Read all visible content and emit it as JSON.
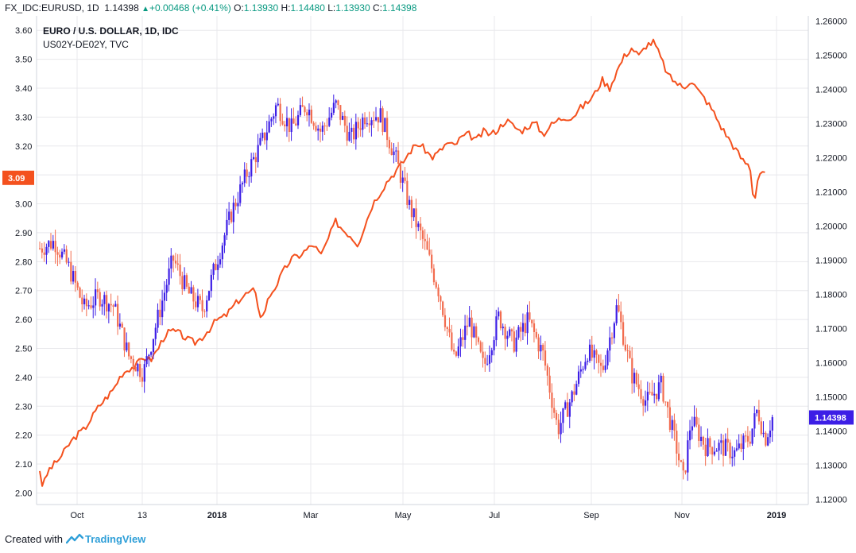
{
  "header": {
    "symbol": "FX_IDC:EURUSD, 1D",
    "last": "1.14398",
    "change": "+0.00468 (+0.41%)",
    "o_label": "O:",
    "o_value": "1.13930",
    "h_label": "H:",
    "h_value": "1.14480",
    "l_label": "L:",
    "l_value": "1.13930",
    "c_label": "C:",
    "c_value": "1.14398"
  },
  "legend": {
    "line1": "EURO / U.S. DOLLAR, 1D, IDC",
    "line2": "US02Y-DE02Y, TVC"
  },
  "footer": {
    "created_with": "Created with",
    "brand": "TradingView"
  },
  "colors": {
    "spread_line": "#f4511e",
    "candle_up": "#3c1ee6",
    "candle_down": "#f26c4f",
    "grid": "#e8e8ec",
    "last_price_tag": "#3c1ee6",
    "spread_tag": "#f4511e"
  },
  "chart_data": {
    "type": "line",
    "x_labels": [
      "Oct",
      "13",
      "2018",
      "Mar",
      "May",
      "Jul",
      "Sep",
      "Nov",
      "2019"
    ],
    "x_labels_bold": [
      "2018",
      "2019"
    ],
    "left_axis": {
      "series": "US02Y-DE02Y",
      "range": [
        1.96,
        3.65
      ],
      "ticks": [
        "3.60",
        "3.50",
        "3.40",
        "3.30",
        "3.20",
        "3.10",
        "3.00",
        "2.90",
        "2.80",
        "2.70",
        "2.60",
        "2.50",
        "2.40",
        "2.30",
        "2.20",
        "2.10",
        "2.00"
      ],
      "last_value": "3.09"
    },
    "right_axis": {
      "series": "EURUSD",
      "range": [
        1.1185,
        1.2615
      ],
      "ticks": [
        "1.26000",
        "1.25000",
        "1.24000",
        "1.23000",
        "1.22000",
        "1.21000",
        "1.20000",
        "1.19000",
        "1.18000",
        "1.17000",
        "1.16000",
        "1.15000",
        "1.14000",
        "1.13000",
        "1.12000"
      ],
      "last_value": "1.14398"
    },
    "grid": true,
    "series": [
      {
        "name": "US02Y-DE02Y",
        "style": "line",
        "axis": "left",
        "points": [
          [
            0,
            2.08
          ],
          [
            0.004,
            2.02
          ],
          [
            0.012,
            2.08
          ],
          [
            0.02,
            2.1
          ],
          [
            0.03,
            2.13
          ],
          [
            0.04,
            2.17
          ],
          [
            0.05,
            2.2
          ],
          [
            0.06,
            2.22
          ],
          [
            0.07,
            2.26
          ],
          [
            0.08,
            2.3
          ],
          [
            0.09,
            2.33
          ],
          [
            0.1,
            2.36
          ],
          [
            0.11,
            2.41
          ],
          [
            0.12,
            2.43
          ],
          [
            0.13,
            2.44
          ],
          [
            0.14,
            2.47
          ],
          [
            0.15,
            2.46
          ],
          [
            0.16,
            2.5
          ],
          [
            0.17,
            2.55
          ],
          [
            0.18,
            2.56
          ],
          [
            0.19,
            2.55
          ],
          [
            0.2,
            2.53
          ],
          [
            0.21,
            2.52
          ],
          [
            0.22,
            2.54
          ],
          [
            0.23,
            2.57
          ],
          [
            0.24,
            2.6
          ],
          [
            0.25,
            2.61
          ],
          [
            0.26,
            2.64
          ],
          [
            0.27,
            2.67
          ],
          [
            0.28,
            2.69
          ],
          [
            0.29,
            2.7
          ],
          [
            0.3,
            2.6
          ],
          [
            0.31,
            2.68
          ],
          [
            0.32,
            2.72
          ],
          [
            0.33,
            2.77
          ],
          [
            0.34,
            2.81
          ],
          [
            0.35,
            2.82
          ],
          [
            0.36,
            2.84
          ],
          [
            0.37,
            2.86
          ],
          [
            0.38,
            2.82
          ],
          [
            0.39,
            2.88
          ],
          [
            0.4,
            2.94
          ],
          [
            0.41,
            2.91
          ],
          [
            0.42,
            2.89
          ],
          [
            0.43,
            2.86
          ],
          [
            0.44,
            2.93
          ],
          [
            0.45,
            3.0
          ],
          [
            0.46,
            3.04
          ],
          [
            0.47,
            3.08
          ],
          [
            0.48,
            3.11
          ],
          [
            0.49,
            3.14
          ],
          [
            0.5,
            3.18
          ],
          [
            0.51,
            3.21
          ],
          [
            0.52,
            3.19
          ],
          [
            0.53,
            3.16
          ],
          [
            0.54,
            3.18
          ],
          [
            0.55,
            3.21
          ],
          [
            0.56,
            3.2
          ],
          [
            0.57,
            3.23
          ],
          [
            0.58,
            3.24
          ],
          [
            0.59,
            3.22
          ],
          [
            0.6,
            3.25
          ],
          [
            0.61,
            3.24
          ],
          [
            0.62,
            3.26
          ],
          [
            0.63,
            3.29
          ],
          [
            0.64,
            3.27
          ],
          [
            0.65,
            3.25
          ],
          [
            0.66,
            3.27
          ],
          [
            0.67,
            3.28
          ],
          [
            0.68,
            3.24
          ],
          [
            0.69,
            3.27
          ],
          [
            0.7,
            3.29
          ],
          [
            0.71,
            3.3
          ],
          [
            0.72,
            3.3
          ],
          [
            0.73,
            3.33
          ],
          [
            0.74,
            3.35
          ],
          [
            0.75,
            3.38
          ],
          [
            0.76,
            3.43
          ],
          [
            0.77,
            3.4
          ],
          [
            0.78,
            3.46
          ],
          [
            0.79,
            3.51
          ],
          [
            0.8,
            3.54
          ],
          [
            0.81,
            3.51
          ],
          [
            0.82,
            3.55
          ],
          [
            0.83,
            3.56
          ],
          [
            0.84,
            3.5
          ],
          [
            0.85,
            3.44
          ],
          [
            0.86,
            3.42
          ],
          [
            0.87,
            3.4
          ],
          [
            0.88,
            3.43
          ],
          [
            0.89,
            3.39
          ],
          [
            0.9,
            3.36
          ],
          [
            0.91,
            3.32
          ],
          [
            0.92,
            3.27
          ],
          [
            0.93,
            3.23
          ],
          [
            0.94,
            3.19
          ],
          [
            0.95,
            3.15
          ],
          [
            0.96,
            3.13
          ],
          [
            0.965,
            3.0
          ],
          [
            0.97,
            3.08
          ],
          [
            0.975,
            3.12
          ],
          [
            0.98,
            3.1
          ]
        ]
      },
      {
        "name": "EURUSD",
        "style": "candles",
        "axis": "right",
        "path": [
          [
            0,
            1.1935
          ],
          [
            0.02,
            1.1955
          ],
          [
            0.04,
            1.1875
          ],
          [
            0.06,
            1.176
          ],
          [
            0.08,
            1.1795
          ],
          [
            0.1,
            1.1765
          ],
          [
            0.12,
            1.162
          ],
          [
            0.14,
            1.157
          ],
          [
            0.16,
            1.1735
          ],
          [
            0.18,
            1.1905
          ],
          [
            0.2,
            1.1805
          ],
          [
            0.22,
            1.1755
          ],
          [
            0.24,
            1.1905
          ],
          [
            0.26,
            1.2045
          ],
          [
            0.28,
            1.2155
          ],
          [
            0.3,
            1.2245
          ],
          [
            0.32,
            1.2355
          ],
          [
            0.34,
            1.2285
          ],
          [
            0.36,
            1.2355
          ],
          [
            0.38,
            1.2275
          ],
          [
            0.4,
            1.2355
          ],
          [
            0.42,
            1.2255
          ],
          [
            0.44,
            1.2325
          ],
          [
            0.46,
            1.2325
          ],
          [
            0.48,
            1.2205
          ],
          [
            0.5,
            1.2055
          ],
          [
            0.52,
            1.1945
          ],
          [
            0.54,
            1.1805
          ],
          [
            0.56,
            1.1605
          ],
          [
            0.58,
            1.1725
          ],
          [
            0.6,
            1.1585
          ],
          [
            0.62,
            1.1735
          ],
          [
            0.64,
            1.1655
          ],
          [
            0.66,
            1.1725
          ],
          [
            0.68,
            1.1625
          ],
          [
            0.7,
            1.1405
          ],
          [
            0.72,
            1.1505
          ],
          [
            0.74,
            1.1635
          ],
          [
            0.76,
            1.1575
          ],
          [
            0.78,
            1.1765
          ],
          [
            0.8,
            1.1565
          ],
          [
            0.82,
            1.1485
          ],
          [
            0.84,
            1.1535
          ],
          [
            0.86,
            1.1355
          ],
          [
            0.87,
            1.1255
          ],
          [
            0.88,
            1.1435
          ],
          [
            0.9,
            1.1355
          ],
          [
            0.92,
            1.1355
          ],
          [
            0.94,
            1.1335
          ],
          [
            0.96,
            1.1385
          ],
          [
            0.97,
            1.1465
          ],
          [
            0.98,
            1.1375
          ],
          [
            0.99,
            1.14398
          ]
        ]
      }
    ]
  }
}
